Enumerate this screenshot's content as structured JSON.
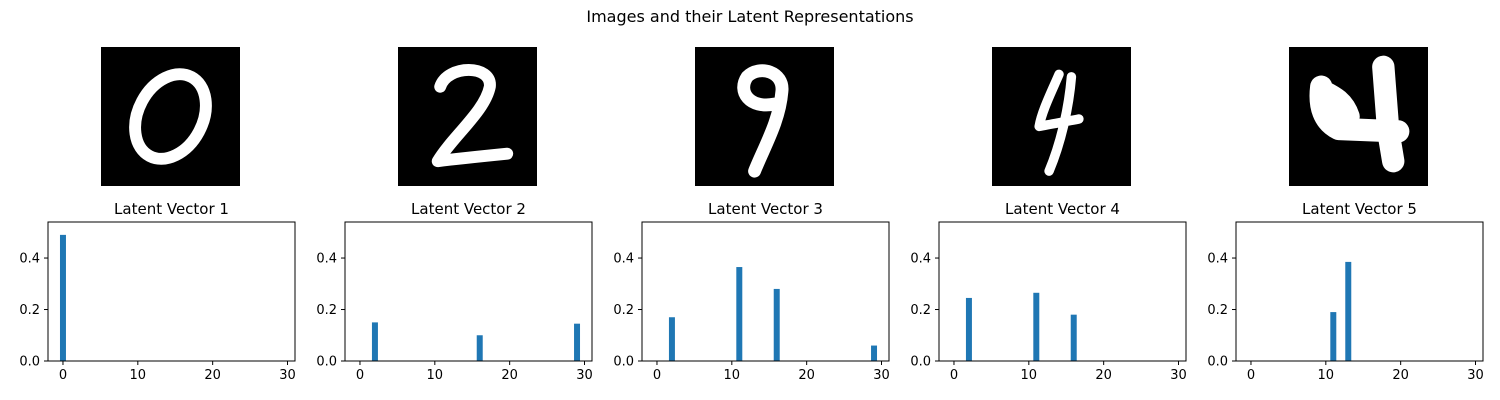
{
  "figure": {
    "title": "Images and their Latent Representations",
    "bar_color": "#1f77b4",
    "image_background": "#000000",
    "image_foreground": "#ffffff"
  },
  "images": [
    {
      "digit_shown": "0"
    },
    {
      "digit_shown": "2"
    },
    {
      "digit_shown": "9"
    },
    {
      "digit_shown": "4"
    },
    {
      "digit_shown": "4"
    }
  ],
  "chart_data": [
    {
      "type": "bar",
      "title": "Latent Vector 1",
      "xlim": [
        -2,
        31
      ],
      "ylim": [
        0,
        0.54
      ],
      "xticks": [
        0,
        10,
        20,
        30
      ],
      "yticks": [
        0.0,
        0.2,
        0.4
      ],
      "bars": [
        {
          "x": 0,
          "value": 0.49
        }
      ]
    },
    {
      "type": "bar",
      "title": "Latent Vector 2",
      "xlim": [
        -2,
        31
      ],
      "ylim": [
        0,
        0.54
      ],
      "xticks": [
        0,
        10,
        20,
        30
      ],
      "yticks": [
        0.0,
        0.2,
        0.4
      ],
      "bars": [
        {
          "x": 2,
          "value": 0.15
        },
        {
          "x": 16,
          "value": 0.1
        },
        {
          "x": 29,
          "value": 0.145
        }
      ]
    },
    {
      "type": "bar",
      "title": "Latent Vector 3",
      "xlim": [
        -2,
        31
      ],
      "ylim": [
        0,
        0.54
      ],
      "xticks": [
        0,
        10,
        20,
        30
      ],
      "yticks": [
        0.0,
        0.2,
        0.4
      ],
      "bars": [
        {
          "x": 2,
          "value": 0.17
        },
        {
          "x": 11,
          "value": 0.365
        },
        {
          "x": 16,
          "value": 0.28
        },
        {
          "x": 29,
          "value": 0.06
        }
      ]
    },
    {
      "type": "bar",
      "title": "Latent Vector 4",
      "xlim": [
        -2,
        31
      ],
      "ylim": [
        0,
        0.54
      ],
      "xticks": [
        0,
        10,
        20,
        30
      ],
      "yticks": [
        0.0,
        0.2,
        0.4
      ],
      "bars": [
        {
          "x": 2,
          "value": 0.245
        },
        {
          "x": 11,
          "value": 0.265
        },
        {
          "x": 16,
          "value": 0.18
        }
      ]
    },
    {
      "type": "bar",
      "title": "Latent Vector 5",
      "xlim": [
        -2,
        31
      ],
      "ylim": [
        0,
        0.54
      ],
      "xticks": [
        0,
        10,
        20,
        30
      ],
      "yticks": [
        0.0,
        0.2,
        0.4
      ],
      "bars": [
        {
          "x": 11,
          "value": 0.19
        },
        {
          "x": 13,
          "value": 0.385
        }
      ]
    }
  ]
}
